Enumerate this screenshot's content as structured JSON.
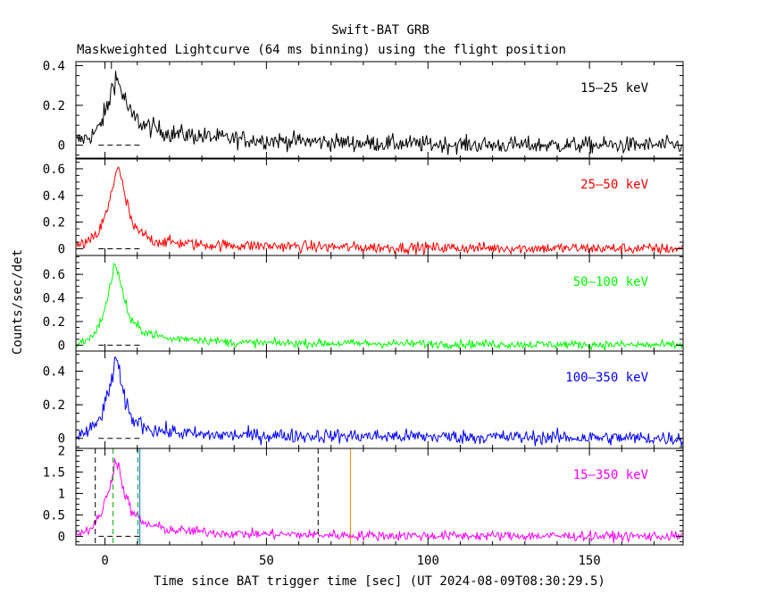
{
  "title": "Swift-BAT GRB",
  "subtitle": "Maskweighted Lightcurve (64 ms binning) using the flight position",
  "ylabel": "Counts/sec/det",
  "xlabel": "Time since BAT trigger time [sec] (UT 2024-08-09T08:30:29.5)",
  "chart_data": {
    "type": "line",
    "title": "Swift-BAT GRB",
    "subtitle": "Maskweighted Lightcurve (64 ms binning) using the flight position",
    "xlabel": "Time since BAT trigger time [sec] (UT 2024-08-09T08:30:29.5)",
    "ylabel": "Counts/sec/det",
    "xlim": [
      -9,
      179
    ],
    "xticks": [
      0,
      50,
      100,
      150
    ],
    "panels": [
      {
        "name": "15-25 keV",
        "label": "15–25 keV",
        "color": "#000000",
        "ylim": [
          -0.07,
          0.42
        ],
        "yticks": [
          0,
          0.2,
          0.4
        ],
        "ytick_labels": [
          "0",
          "0.2",
          "0.4"
        ],
        "peak": 0.35,
        "peak_time": 3.5,
        "noise": 0.03,
        "points": [
          [
            -9,
            0.02
          ],
          [
            -5,
            0.04
          ],
          [
            -2,
            0.08
          ],
          [
            1,
            0.2
          ],
          [
            3,
            0.35
          ],
          [
            5,
            0.28
          ],
          [
            8,
            0.15
          ],
          [
            12,
            0.1
          ],
          [
            20,
            0.06
          ],
          [
            40,
            0.03
          ],
          [
            80,
            0.01
          ],
          [
            120,
            0.0
          ],
          [
            179,
            0.0
          ]
        ]
      },
      {
        "name": "25-50 keV",
        "label": "25–50 keV",
        "color": "#ff0000",
        "ylim": [
          -0.05,
          0.68
        ],
        "yticks": [
          0,
          0.2,
          0.4,
          0.6
        ],
        "ytick_labels": [
          "0",
          "0.2",
          "0.4",
          "0.6"
        ],
        "peak": 0.65,
        "peak_time": 4,
        "noise": 0.03,
        "points": [
          [
            -9,
            0.02
          ],
          [
            -5,
            0.05
          ],
          [
            -2,
            0.12
          ],
          [
            1,
            0.3
          ],
          [
            4,
            0.65
          ],
          [
            6,
            0.4
          ],
          [
            9,
            0.15
          ],
          [
            15,
            0.06
          ],
          [
            30,
            0.03
          ],
          [
            80,
            0.01
          ],
          [
            179,
            0.0
          ]
        ]
      },
      {
        "name": "50-100 keV",
        "label": "50–100 keV",
        "color": "#00ff00",
        "ylim": [
          -0.05,
          0.76
        ],
        "yticks": [
          0,
          0.2,
          0.4,
          0.6
        ],
        "ytick_labels": [
          "0",
          "0.2",
          "0.4",
          "0.6"
        ],
        "peak": 0.72,
        "peak_time": 3,
        "noise": 0.025,
        "points": [
          [
            -9,
            0.01
          ],
          [
            -5,
            0.05
          ],
          [
            -2,
            0.15
          ],
          [
            1,
            0.4
          ],
          [
            3,
            0.72
          ],
          [
            5,
            0.5
          ],
          [
            8,
            0.2
          ],
          [
            12,
            0.12
          ],
          [
            20,
            0.05
          ],
          [
            25,
            0.06
          ],
          [
            40,
            0.02
          ],
          [
            179,
            0.0
          ]
        ]
      },
      {
        "name": "100-350 keV",
        "label": "100–350 keV",
        "color": "#0000ff",
        "ylim": [
          -0.06,
          0.52
        ],
        "yticks": [
          0,
          0.2,
          0.4
        ],
        "ytick_labels": [
          "0",
          "0.2",
          "0.4"
        ],
        "peak": 0.5,
        "peak_time": 3.5,
        "noise": 0.03,
        "points": [
          [
            -9,
            0.01
          ],
          [
            -5,
            0.04
          ],
          [
            -2,
            0.1
          ],
          [
            1,
            0.25
          ],
          [
            3.5,
            0.5
          ],
          [
            5,
            0.3
          ],
          [
            8,
            0.12
          ],
          [
            15,
            0.05
          ],
          [
            30,
            0.02
          ],
          [
            179,
            0.0
          ]
        ]
      },
      {
        "name": "15-350 keV",
        "label": "15–350 keV",
        "color": "#ff00ff",
        "ylim": [
          -0.2,
          2.05
        ],
        "yticks": [
          0,
          0.5,
          1,
          1.5,
          2
        ],
        "ytick_labels": [
          "0",
          "0.5",
          "1",
          "1.5",
          "2"
        ],
        "peak": 1.9,
        "peak_time": 3.5,
        "noise": 0.08,
        "points": [
          [
            -9,
            0.05
          ],
          [
            -5,
            0.15
          ],
          [
            -2,
            0.4
          ],
          [
            1,
            1.0
          ],
          [
            3.5,
            1.9
          ],
          [
            5,
            1.3
          ],
          [
            8,
            0.6
          ],
          [
            12,
            0.3
          ],
          [
            20,
            0.15
          ],
          [
            40,
            0.06
          ],
          [
            80,
            0.02
          ],
          [
            179,
            0.0
          ]
        ],
        "markers": [
          {
            "name": "start-dashed",
            "x": -3,
            "color": "#000000",
            "style": "dashed"
          },
          {
            "name": "t90-start",
            "x": 2.5,
            "color": "#00aa00",
            "style": "dashed"
          },
          {
            "name": "t90-end",
            "x": 10.2,
            "color": "#00aa00",
            "style": "dashed"
          },
          {
            "name": "cyan-line",
            "x": 10.8,
            "color": "#0070ff",
            "style": "solid"
          },
          {
            "name": "end-dashed",
            "x": 66,
            "color": "#000000",
            "style": "dashed"
          },
          {
            "name": "orange-line",
            "x": 76,
            "color": "#ff8000",
            "style": "solid"
          }
        ]
      }
    ]
  }
}
